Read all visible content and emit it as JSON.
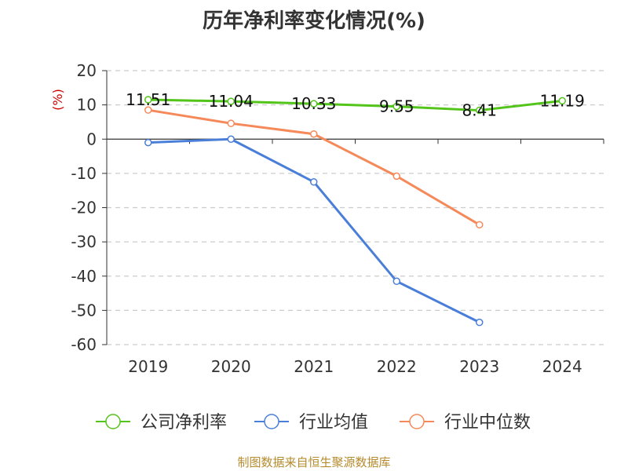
{
  "chart_data": {
    "type": "line",
    "title": "历年净利率变化情况(%)",
    "ylabel": "(%)",
    "xlabel": "",
    "categories": [
      "2019",
      "2020",
      "2021",
      "2022",
      "2023",
      "2024"
    ],
    "ylim": [
      -60,
      20
    ],
    "yticks": [
      20,
      10,
      0,
      -10,
      -20,
      -30,
      -40,
      -50,
      -60
    ],
    "grid": true,
    "legend_position": "bottom",
    "series": [
      {
        "name": "公司净利率",
        "color": "#52c41a",
        "values": [
          11.51,
          11.04,
          10.33,
          9.55,
          8.41,
          11.19
        ],
        "labels": [
          "11.51",
          "11.04",
          "10.33",
          "9.55",
          "8.41",
          "11.19"
        ]
      },
      {
        "name": "行业均值",
        "color": "#4a7fd9",
        "values": [
          -1.0,
          0.0,
          -12.5,
          -41.5,
          -53.5,
          null
        ]
      },
      {
        "name": "行业中位数",
        "color": "#f5895a",
        "values": [
          8.5,
          4.6,
          1.5,
          -10.8,
          -25.0,
          null
        ]
      }
    ],
    "unit_color": "#cc0000",
    "source": "制图数据来自恒生聚源数据库"
  }
}
